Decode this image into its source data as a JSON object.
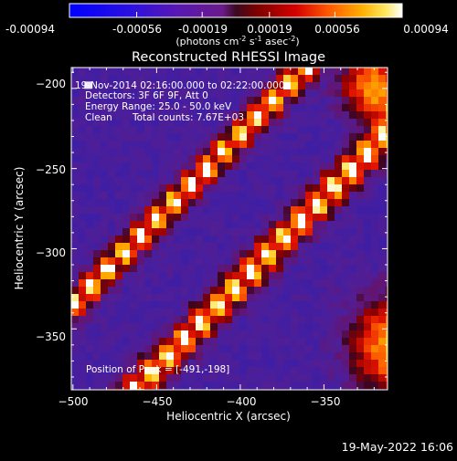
{
  "colorbar": {
    "tick_labels": [
      "-0.00094",
      "-0.00056",
      "-0.00019",
      "0.00019",
      "0.00056",
      "0.00094"
    ],
    "units_base": "(photons cm",
    "units_exp1": "-2",
    "units_mid": " s",
    "units_exp2": "-1",
    "units_tail": " asec",
    "units_exp3": "-2",
    "units_close": ")",
    "range": [
      -0.00094,
      0.00094
    ]
  },
  "chart_data": {
    "type": "heatmap",
    "title": "Reconstructed RHESSI Image",
    "xlabel": "Heliocentric X (arcsec)",
    "ylabel": "Heliocentric Y (arcsec)",
    "xlim": [
      -501,
      -312
    ],
    "ylim": [
      -388,
      -187
    ],
    "x_ticks": [
      -500,
      -450,
      -400,
      -350
    ],
    "x_tick_labels": [
      "−500",
      "−450",
      "−400",
      "−350"
    ],
    "y_ticks": [
      -200,
      -250,
      -300,
      -350
    ],
    "y_tick_labels": [
      "−200",
      "−250",
      "−300",
      "−350"
    ],
    "annotations": {
      "time_range": "19-Nov-2014 02:16:00.000 to 02:22:00.000",
      "detectors": "Detectors: 3F 6F 9F, Att 0",
      "energy": "Energy Range: 25.0 - 50.0 keV",
      "clean_label": "Clean",
      "total_counts": "Total counts: 7.67E+03",
      "peak": "Position of Peak = [-491,-198]"
    },
    "peak_position": [
      -491,
      -198
    ]
  },
  "footer": {
    "timestamp": "19-May-2022 16:06"
  }
}
